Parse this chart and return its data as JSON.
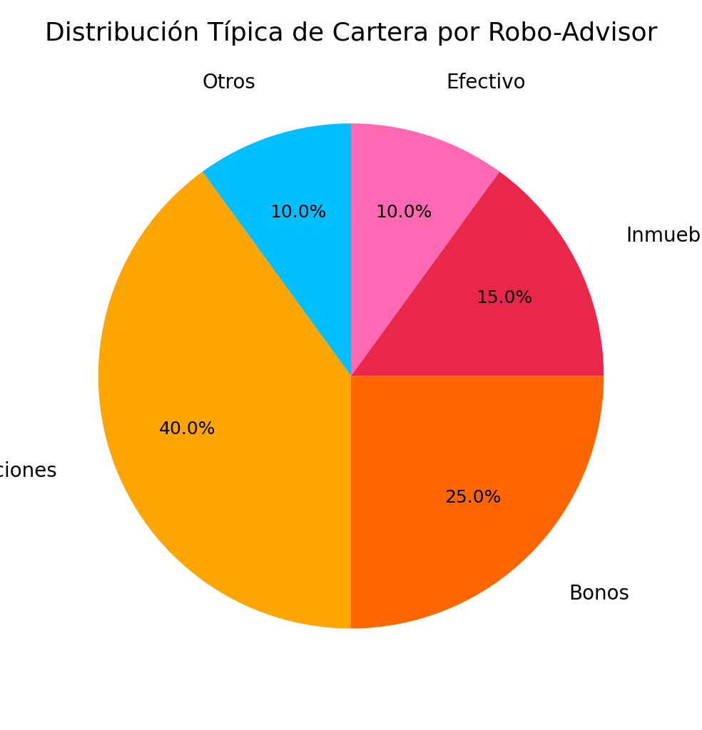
{
  "title": "Distribución Típica de Cartera por Robo-Advisor",
  "title_fontsize": 26,
  "labels_ordered": [
    "Acciones",
    "Otros",
    "Efectivo",
    "Inmuebles",
    "Bonos"
  ],
  "values_ordered": [
    40,
    10,
    10,
    15,
    25
  ],
  "colors_ordered": [
    "#FFA500",
    "#00BFFF",
    "#FF69B4",
    "#E8274B",
    "#FF6600"
  ],
  "startangle": 270,
  "counterclock": false,
  "autopct_fontsize": 18,
  "label_fontsize": 20,
  "label_distance": 1.22,
  "pct_distance": 0.68,
  "background_color": "#ffffff"
}
